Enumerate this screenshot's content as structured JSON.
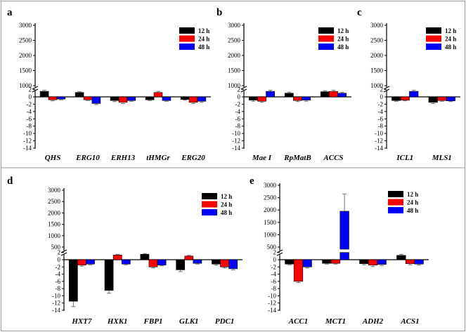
{
  "legend": {
    "labels": [
      "12 h",
      "24 h",
      "48 h"
    ],
    "colors": [
      "#000000",
      "#ff0000",
      "#0000ff"
    ]
  },
  "chart_data": [
    {
      "panel": "a",
      "type": "bar",
      "broken_axis": true,
      "categories": [
        "QHS",
        "ERG10",
        "ERH13",
        "tHMGr",
        "ERG20"
      ],
      "series": [
        {
          "name": "12 h",
          "values": [
            1.5,
            1.2,
            -1.0,
            -0.8,
            -0.7
          ],
          "errors": [
            0.3,
            0.2,
            0.3,
            0.2,
            0.2
          ]
        },
        {
          "name": "24 h",
          "values": [
            -0.8,
            -0.8,
            -1.5,
            1.2,
            -1.5
          ],
          "errors": [
            0.3,
            0.2,
            0.3,
            0.3,
            0.3
          ]
        },
        {
          "name": "48 h",
          "values": [
            -0.6,
            -1.8,
            -1.0,
            -1.0,
            -1.2
          ],
          "errors": [
            0.2,
            0.3,
            0.2,
            0.2,
            0.3
          ]
        }
      ],
      "upper_ticks": [
        "1000",
        "1500",
        "2000",
        "2500",
        "3000"
      ],
      "lower_ticks": [
        "2",
        "0",
        "-2",
        "-4",
        "-6",
        "-8",
        "-10",
        "-12",
        "-14"
      ]
    },
    {
      "panel": "b",
      "type": "bar",
      "broken_axis": true,
      "categories": [
        "Mae I",
        "RpMatB",
        "ACCS"
      ],
      "series": [
        {
          "name": "12 h",
          "values": [
            -0.9,
            1.0,
            1.4
          ],
          "errors": [
            0.3,
            0.3,
            0.3
          ]
        },
        {
          "name": "24 h",
          "values": [
            -1.2,
            -1.0,
            1.5
          ],
          "errors": [
            0.3,
            0.3,
            0.3
          ]
        },
        {
          "name": "48 h",
          "values": [
            1.5,
            -0.9,
            1.0
          ],
          "errors": [
            0.3,
            0.3,
            0.2
          ]
        }
      ],
      "upper_ticks": [
        "1000",
        "1500",
        "2000",
        "2500",
        "3000"
      ],
      "lower_ticks": [
        "2",
        "0",
        "-2",
        "-4",
        "-6",
        "-8",
        "-10",
        "-12",
        "-14"
      ]
    },
    {
      "panel": "c",
      "type": "bar",
      "broken_axis": true,
      "categories": [
        "ICL1",
        "MLS1"
      ],
      "series": [
        {
          "name": "12 h",
          "values": [
            -1.0,
            -1.5
          ],
          "errors": [
            0.2,
            0.3
          ]
        },
        {
          "name": "24 h",
          "values": [
            -0.9,
            -1.0
          ],
          "errors": [
            0.2,
            0.2
          ]
        },
        {
          "name": "48 h",
          "values": [
            1.5,
            -1.1
          ],
          "errors": [
            0.3,
            0.2
          ]
        }
      ],
      "upper_ticks": [
        "1000",
        "1500",
        "2000",
        "2500",
        "3000"
      ],
      "lower_ticks": [
        "2",
        "0",
        "-2",
        "-4",
        "-6",
        "-8",
        "-10",
        "-12",
        "-14"
      ]
    },
    {
      "panel": "d",
      "type": "bar",
      "broken_axis": true,
      "categories": [
        "HXT7",
        "HXK1",
        "FBP1",
        "GLK1",
        "PDC1"
      ],
      "series": [
        {
          "name": "12 h",
          "values": [
            -11.5,
            -8.5,
            1.5,
            -2.8,
            -1.2
          ],
          "errors": [
            1.5,
            0.8,
            0.2,
            0.5,
            0.3
          ]
        },
        {
          "name": "24 h",
          "values": [
            -1.5,
            1.3,
            -2.0,
            1.0,
            -2.0
          ],
          "errors": [
            0.3,
            0.2,
            0.3,
            0.2,
            0.3
          ]
        },
        {
          "name": "48 h",
          "values": [
            -1.2,
            -1.2,
            -1.5,
            -1.0,
            -2.5
          ],
          "errors": [
            0.2,
            0.2,
            0.2,
            0.2,
            0.3
          ]
        }
      ],
      "upper_ticks": [
        "500",
        "1000",
        "1500",
        "2000",
        "2500",
        "3000"
      ],
      "lower_ticks": [
        "2",
        "0",
        "-2",
        "-4",
        "-6",
        "-8",
        "-10",
        "-12",
        "-14"
      ]
    },
    {
      "panel": "e",
      "type": "bar",
      "broken_axis": true,
      "categories": [
        "ACC1",
        "MCT1",
        "ADH2",
        "ACS1"
      ],
      "series": [
        {
          "name": "12 h",
          "values": [
            -1.2,
            -1.0,
            -1.1,
            1.2
          ],
          "errors": [
            0.2,
            0.2,
            0.3,
            0.3
          ]
        },
        {
          "name": "24 h",
          "values": [
            -6.0,
            -1.0,
            -1.5,
            -1.1
          ],
          "errors": [
            0.3,
            0.2,
            0.4,
            0.3
          ]
        },
        {
          "name": "48 h",
          "values": [
            -2.0,
            1950,
            -1.3,
            -1.2
          ],
          "errors": [
            0.3,
            700,
            0.3,
            0.3
          ]
        }
      ],
      "upper_ticks": [
        "500",
        "1000",
        "1500",
        "2000",
        "2500",
        "3000"
      ],
      "lower_ticks": [
        "2",
        "0",
        "-2",
        "-4",
        "-6",
        "-8",
        "-10",
        "-12",
        "-14"
      ]
    }
  ]
}
